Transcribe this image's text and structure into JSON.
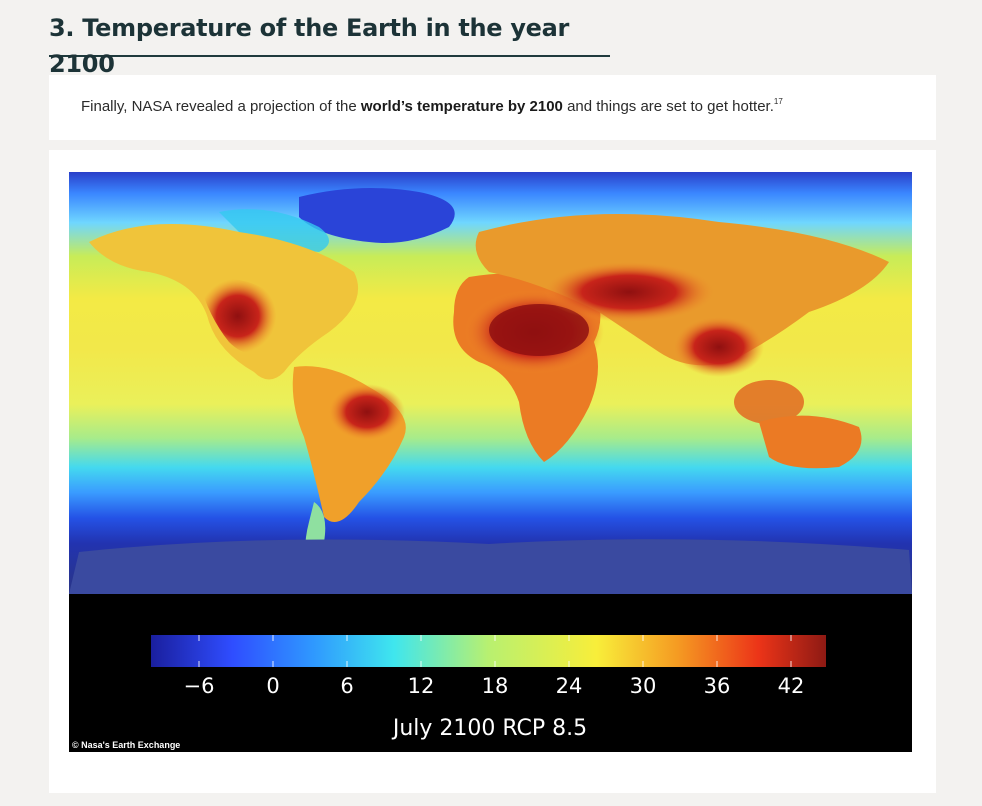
{
  "section": {
    "title": "3. Temperature of the Earth in the year 2100"
  },
  "intro": {
    "before": "Finally, NASA revealed a projection of the ",
    "bold": "world’s temperature by 2100",
    "after": " and things are set to get hotter.",
    "footnote": "17"
  },
  "figure": {
    "image_alt": "Projected global temperature map, July 2100",
    "colorbar_ticks": [
      "−6",
      "0",
      "6",
      "12",
      "18",
      "24",
      "30",
      "36",
      "42"
    ],
    "caption": "July 2100 RCP 8.5",
    "credit": "© Nasa's Earth Exchange",
    "colors": {
      "deep_blue": "#1a2aa8",
      "blue": "#2f6bff",
      "cyan": "#3fe3f0",
      "yellow": "#f4ef3a",
      "orange": "#f28a1f",
      "red": "#d22418",
      "dark_red": "#8f1010"
    }
  }
}
